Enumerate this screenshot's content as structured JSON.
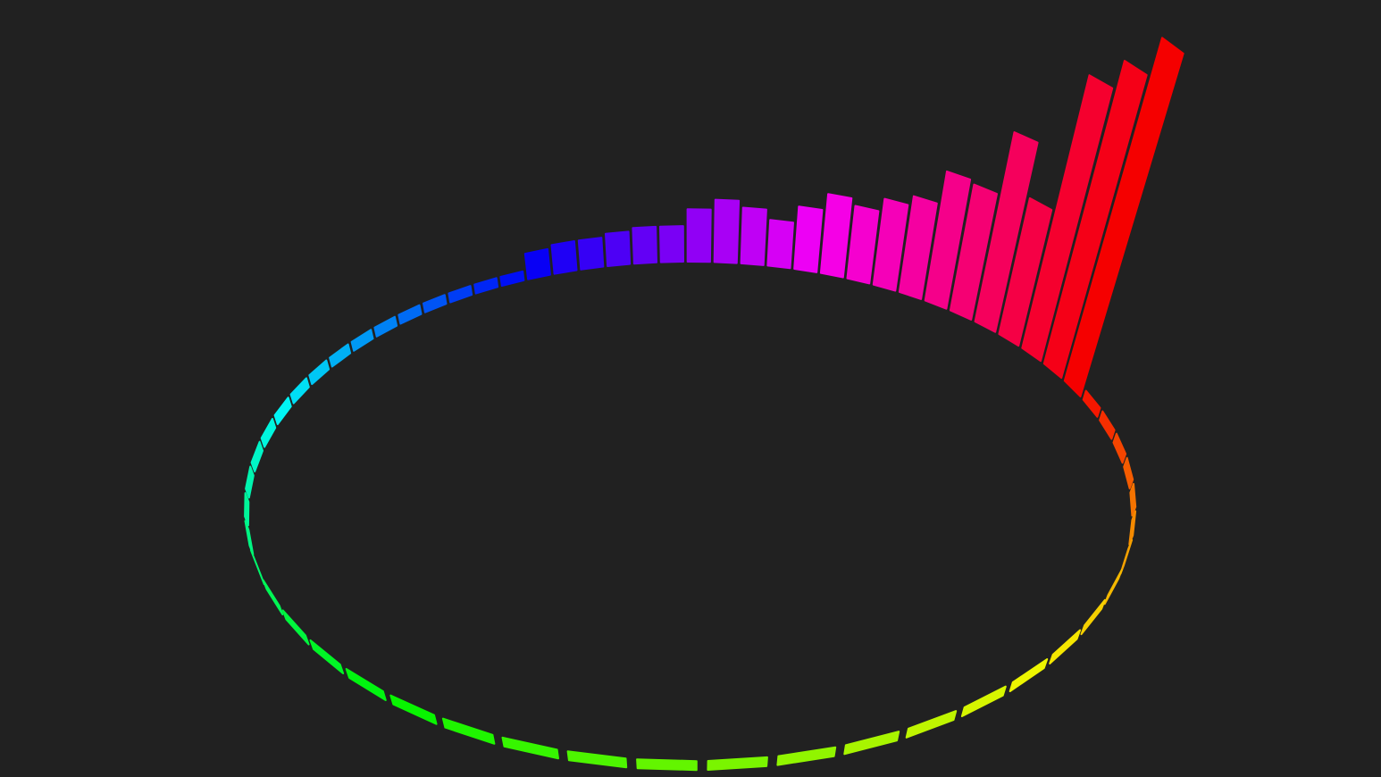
{
  "visualizer": {
    "bars": [
      100,
      0,
      0,
      0,
      0,
      0,
      0,
      0,
      0,
      0,
      0,
      0,
      0,
      0,
      0,
      0,
      0,
      0,
      0,
      0,
      0,
      0,
      0,
      0,
      0,
      0,
      0,
      0,
      0,
      0,
      0,
      0,
      0,
      0,
      0,
      0,
      0,
      0,
      0,
      0,
      0,
      0,
      0,
      5,
      6,
      6,
      7,
      8,
      8,
      13,
      16,
      14,
      11,
      16,
      21,
      19,
      23,
      26,
      36,
      35,
      54,
      38,
      79,
      88
    ]
  }
}
